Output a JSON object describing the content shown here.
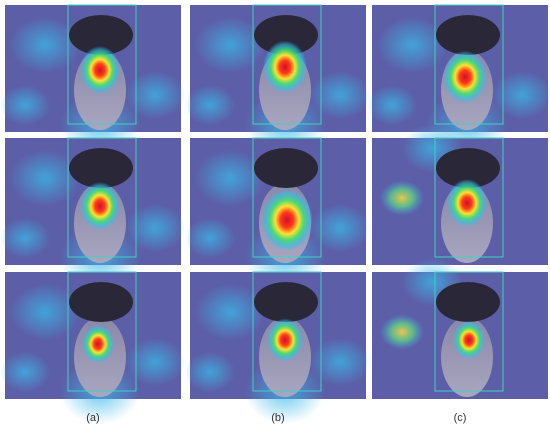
{
  "labels": [
    "(a)",
    "(b)",
    "(c)"
  ]
}
